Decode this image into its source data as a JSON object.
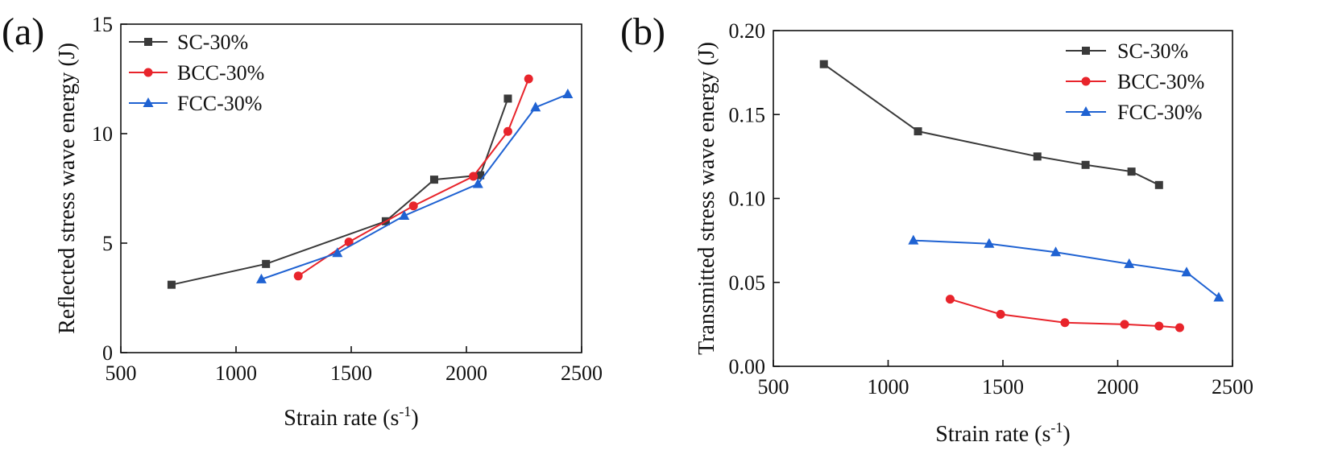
{
  "chart_data": [
    {
      "panel": "(a)",
      "type": "line",
      "xlabel": "Strain rate (s",
      "xlabel_sup": "-1",
      "xlabel_end": ")",
      "ylabel": "Reflected stress wave energy (J)",
      "xlim": [
        500,
        2500
      ],
      "ylim": [
        0,
        15
      ],
      "xticks": [
        500,
        1000,
        1500,
        2000,
        2500
      ],
      "yticks": [
        0,
        5,
        10,
        15
      ],
      "ytick_labels": [
        "0",
        "5",
        "10",
        "15"
      ],
      "legend_position": "top-left",
      "series": [
        {
          "name": "SC-30%",
          "color": "#3a3a3a",
          "marker": "square",
          "x": [
            720,
            1130,
            1650,
            1860,
            2060,
            2180
          ],
          "y": [
            3.1,
            4.05,
            6.0,
            7.9,
            8.1,
            11.6
          ]
        },
        {
          "name": "BCC-30%",
          "color": "#e8242b",
          "marker": "circle",
          "x": [
            1270,
            1490,
            1770,
            2030,
            2180,
            2270
          ],
          "y": [
            3.5,
            5.05,
            6.7,
            8.05,
            10.1,
            12.5
          ]
        },
        {
          "name": "FCC-30%",
          "color": "#1f62d2",
          "marker": "triangle",
          "x": [
            1110,
            1440,
            1730,
            2050,
            2300,
            2440
          ],
          "y": [
            3.35,
            4.55,
            6.25,
            7.7,
            11.2,
            11.8
          ]
        }
      ]
    },
    {
      "panel": "(b)",
      "type": "line",
      "xlabel": "Strain rate (s",
      "xlabel_sup": "-1",
      "xlabel_end": ")",
      "ylabel": "Transmitted stress wave energy (J)",
      "xlim": [
        500,
        2500
      ],
      "ylim": [
        0,
        0.2
      ],
      "xticks": [
        500,
        1000,
        1500,
        2000,
        2500
      ],
      "yticks": [
        0,
        0.05,
        0.1,
        0.15,
        0.2
      ],
      "ytick_labels": [
        "0.00",
        "0.05",
        "0.10",
        "0.15",
        "0.20"
      ],
      "legend_position": "top-right",
      "series": [
        {
          "name": "SC-30%",
          "color": "#3a3a3a",
          "marker": "square",
          "x": [
            720,
            1130,
            1650,
            1860,
            2060,
            2180
          ],
          "y": [
            0.18,
            0.14,
            0.125,
            0.12,
            0.116,
            0.108
          ]
        },
        {
          "name": "BCC-30%",
          "color": "#e8242b",
          "marker": "circle",
          "x": [
            1270,
            1490,
            1770,
            2030,
            2180,
            2270
          ],
          "y": [
            0.04,
            0.031,
            0.026,
            0.025,
            0.024,
            0.023
          ]
        },
        {
          "name": "FCC-30%",
          "color": "#1f62d2",
          "marker": "triangle",
          "x": [
            1110,
            1440,
            1730,
            2050,
            2300,
            2440
          ],
          "y": [
            0.075,
            0.073,
            0.068,
            0.061,
            0.056,
            0.041
          ]
        }
      ]
    }
  ]
}
